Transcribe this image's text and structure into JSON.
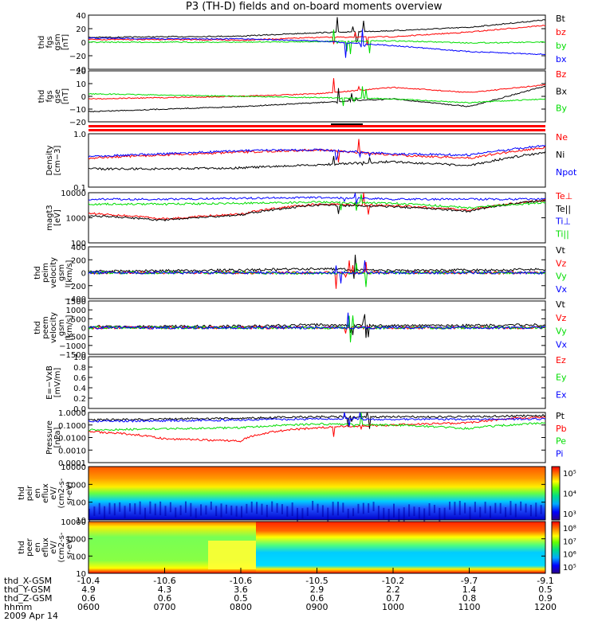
{
  "title": "P3 (TH-D) fields and on-board moments overview",
  "colors": {
    "black": "#000000",
    "red": "#ff0000",
    "green": "#00dd00",
    "blue": "#0000ff",
    "orange": "#ff8800"
  },
  "panels": [
    {
      "id": "bgsm",
      "ylabel": [
        "thd",
        "fgs",
        "gsm",
        "[nT]"
      ],
      "yticks": [
        "40",
        "20",
        "0",
        "−20",
        "−40"
      ],
      "legend": [
        {
          "text": "Bt",
          "color": "black"
        },
        {
          "text": "bz",
          "color": "red"
        },
        {
          "text": "by",
          "color": "green"
        },
        {
          "text": "bx",
          "color": "blue"
        }
      ]
    },
    {
      "id": "bgse",
      "ylabel": [
        "thd",
        "fgs",
        "gse",
        "[nT]"
      ],
      "yticks": [
        "20",
        "10",
        "0",
        "−10",
        "−20"
      ],
      "legend": [
        {
          "text": "Bz",
          "color": "red"
        },
        {
          "text": "Bx",
          "color": "black"
        },
        {
          "text": "By",
          "color": "green"
        }
      ]
    },
    {
      "id": "density",
      "ylabel": [
        "Density",
        "[cm−3]"
      ],
      "yticks": [
        "1.0",
        "0.1"
      ],
      "legend": [
        {
          "text": "Ne",
          "color": "red"
        },
        {
          "text": "Ni",
          "color": "black"
        },
        {
          "text": "Npot",
          "color": "blue"
        }
      ]
    },
    {
      "id": "temp",
      "ylabel": [
        "magt3",
        "[eV]"
      ],
      "yticks": [
        "10000",
        "1000",
        "100"
      ],
      "legend": [
        {
          "text": "Te⊥",
          "color": "red"
        },
        {
          "text": "Te||",
          "color": "black"
        },
        {
          "text": "Ti⊥",
          "color": "blue"
        },
        {
          "text": "Ti||",
          "color": "green"
        }
      ]
    },
    {
      "id": "vi",
      "ylabel": [
        "thd",
        "peim",
        "velocity",
        "gsm",
        "[km/s]"
      ],
      "yticks": [
        "400",
        "200",
        "0",
        "−200",
        "−400"
      ],
      "legend": [
        {
          "text": "Vt",
          "color": "black"
        },
        {
          "text": "Vz",
          "color": "red"
        },
        {
          "text": "Vy",
          "color": "green"
        },
        {
          "text": "Vx",
          "color": "blue"
        }
      ]
    },
    {
      "id": "ve",
      "ylabel": [
        "thd",
        "peem",
        "velocity",
        "gsm",
        "[km/s]"
      ],
      "yticks": [
        "1500",
        "1000",
        "500",
        "0",
        "−500",
        "−1000",
        "−1500"
      ],
      "legend": [
        {
          "text": "Vt",
          "color": "black"
        },
        {
          "text": "Vz",
          "color": "red"
        },
        {
          "text": "Vy",
          "color": "green"
        },
        {
          "text": "Vx",
          "color": "blue"
        }
      ]
    },
    {
      "id": "efield",
      "ylabel": [
        "E=−VxB",
        "[mV/m]"
      ],
      "yticks": [
        "1.0",
        "0.8",
        "0.6",
        "0.4",
        "0.2",
        "0.0"
      ],
      "legend": [
        {
          "text": "Ez",
          "color": "red"
        },
        {
          "text": "Ey",
          "color": "green"
        },
        {
          "text": "Ex",
          "color": "blue"
        }
      ]
    },
    {
      "id": "pressure",
      "ylabel": [
        "Pressure",
        "[nPa]"
      ],
      "yticks": [
        "1.0000",
        "0.1000",
        "0.0100",
        "0.0010",
        "0.0001"
      ],
      "legend": [
        {
          "text": "Pt",
          "color": "black"
        },
        {
          "text": "Pb",
          "color": "red"
        },
        {
          "text": "Pe",
          "color": "green"
        },
        {
          "text": "Pi",
          "color": "blue"
        }
      ]
    },
    {
      "id": "ispec",
      "ylabel": [
        "thd",
        "peir",
        "en",
        "eflux",
        "eV/",
        "(cm2-s-",
        "sr-eV)"
      ],
      "yticks": [
        "10000",
        "1000",
        "100",
        "10"
      ],
      "cbar": [
        "10⁵",
        "10⁴",
        "10³"
      ]
    },
    {
      "id": "espec",
      "ylabel": [
        "thd",
        "peer",
        "en",
        "eflux",
        "eV/",
        "(cm2-s-",
        "sr-eV)"
      ],
      "yticks": [
        "10000",
        "1000",
        "100",
        "10"
      ],
      "cbar": [
        "10⁸",
        "10⁷",
        "10⁶",
        "10⁵"
      ]
    }
  ],
  "xaxis": {
    "rows": [
      {
        "label": "thd_X-GSM",
        "values": [
          "-10.4",
          "-10.6",
          "-10.6",
          "-10.5",
          "-10.2",
          "-9.7",
          "-9.1"
        ]
      },
      {
        "label": "thd_Y-GSM",
        "values": [
          "4.9",
          "4.3",
          "3.6",
          "2.9",
          "2.2",
          "1.4",
          "0.5"
        ]
      },
      {
        "label": "thd_Z-GSM",
        "values": [
          "0.6",
          "0.6",
          "0.5",
          "0.6",
          "0.7",
          "0.8",
          "0.9"
        ]
      },
      {
        "label": "hhmm",
        "values": [
          "0600",
          "0700",
          "0800",
          "0900",
          "1000",
          "1100",
          "1200"
        ]
      }
    ],
    "date": "2009 Apr 14"
  },
  "chart_data": {
    "type": "line",
    "title": "P3 (TH-D) fields and on-board moments overview",
    "x_range": [
      "0600",
      "1200"
    ],
    "panels": [
      {
        "name": "thd fgs gsm [nT]",
        "ylim": [
          -40,
          40
        ],
        "series": [
          {
            "name": "Bt",
            "x": [
              "0600",
              "0700",
              "0800",
              "0900",
              "1000",
              "1100",
              "1200"
            ],
            "values": [
              7,
              8,
              9,
              14,
              17,
              22,
              33
            ]
          },
          {
            "name": "bz",
            "x": [
              "0600",
              "0700",
              "0800",
              "0900",
              "1000",
              "1100",
              "1200"
            ],
            "values": [
              4,
              4,
              3,
              7,
              8,
              15,
              25
            ]
          },
          {
            "name": "by",
            "x": [
              "0600",
              "0700",
              "0800",
              "0900",
              "1000",
              "1100",
              "1200"
            ],
            "values": [
              0,
              0,
              0,
              1,
              2,
              -1,
              0
            ]
          },
          {
            "name": "bx",
            "x": [
              "0600",
              "0700",
              "0800",
              "0900",
              "1000",
              "1100",
              "1200"
            ],
            "values": [
              6,
              5,
              5,
              2,
              -5,
              -14,
              -18
            ]
          }
        ]
      },
      {
        "name": "thd fgs gse [nT]",
        "ylim": [
          -20,
          20
        ],
        "series": [
          {
            "name": "Bz",
            "x": [
              "0600",
              "0700",
              "0800",
              "0900",
              "1000",
              "1100",
              "1200"
            ],
            "values": [
              -2,
              -1,
              0,
              2,
              7,
              3,
              9
            ]
          },
          {
            "name": "Bx",
            "x": [
              "0600",
              "0700",
              "0800",
              "0900",
              "1000",
              "1100",
              "1200"
            ],
            "values": [
              -12,
              -10,
              -8,
              -5,
              -2,
              -8,
              8
            ]
          },
          {
            "name": "By",
            "x": [
              "0600",
              "0700",
              "0800",
              "0900",
              "1000",
              "1100",
              "1200"
            ],
            "values": [
              2,
              1,
              0,
              -1,
              -2,
              -5,
              -2
            ]
          }
        ]
      },
      {
        "name": "Density [cm-3]",
        "ylim": [
          0.1,
          1.0
        ],
        "series": [
          {
            "name": "Ne",
            "x": [
              "0600",
              "0700",
              "0800",
              "0900",
              "1000",
              "1100",
              "1200"
            ],
            "values": [
              0.35,
              0.4,
              0.45,
              0.5,
              0.4,
              0.35,
              0.55
            ]
          },
          {
            "name": "Ni",
            "x": [
              "0600",
              "0700",
              "0800",
              "0900",
              "1000",
              "1100",
              "1200"
            ],
            "values": [
              0.22,
              0.22,
              0.23,
              0.26,
              0.3,
              0.25,
              0.45
            ]
          },
          {
            "name": "Npot",
            "x": [
              "0600",
              "0700",
              "0800",
              "0900",
              "1000",
              "1100",
              "1200"
            ],
            "values": [
              0.38,
              0.42,
              0.48,
              0.5,
              0.42,
              0.4,
              0.6
            ]
          }
        ]
      },
      {
        "name": "magt3 [eV]",
        "ylim": [
          100,
          10000
        ],
        "series": [
          {
            "name": "Te⊥",
            "x": [
              "0600",
              "0700",
              "0800",
              "0900",
              "1000",
              "1100",
              "1200"
            ],
            "values": [
              1500,
              900,
              1400,
              3500,
              3000,
              2000,
              5000
            ]
          },
          {
            "name": "Te||",
            "x": [
              "0600",
              "0700",
              "0800",
              "0900",
              "1000",
              "1100",
              "1200"
            ],
            "values": [
              1200,
              800,
              1300,
              3200,
              2800,
              1800,
              5000
            ]
          },
          {
            "name": "Ti⊥",
            "x": [
              "0600",
              "0700",
              "0800",
              "0900",
              "1000",
              "1100",
              "1200"
            ],
            "values": [
              5500,
              5500,
              6000,
              6500,
              5500,
              5500,
              5500
            ]
          },
          {
            "name": "Ti||",
            "x": [
              "0600",
              "0700",
              "0800",
              "0900",
              "1000",
              "1100",
              "1200"
            ],
            "values": [
              3500,
              3500,
              3800,
              4200,
              3800,
              2500,
              4000
            ]
          }
        ]
      },
      {
        "name": "thd peim velocity gsm [km/s]",
        "ylim": [
          -400,
          400
        ],
        "series": [
          {
            "name": "Vt",
            "x": [
              "0600",
              "0700",
              "0800",
              "0900",
              "1000",
              "1100",
              "1200"
            ],
            "values": [
              20,
              30,
              40,
              60,
              30,
              40,
              50
            ]
          },
          {
            "name": "Vz",
            "x": [
              "0600",
              "0700",
              "0800",
              "0900",
              "1000",
              "1100",
              "1200"
            ],
            "values": [
              0,
              0,
              0,
              0,
              0,
              0,
              0
            ]
          },
          {
            "name": "Vy",
            "x": [
              "0600",
              "0700",
              "0800",
              "0900",
              "1000",
              "1100",
              "1200"
            ],
            "values": [
              0,
              0,
              0,
              -10,
              0,
              0,
              0
            ]
          },
          {
            "name": "Vx",
            "x": [
              "0600",
              "0700",
              "0800",
              "0900",
              "1000",
              "1100",
              "1200"
            ],
            "values": [
              0,
              0,
              0,
              0,
              0,
              0,
              0
            ]
          }
        ]
      },
      {
        "name": "thd peem velocity gsm [km/s]",
        "ylim": [
          -1500,
          1500
        ],
        "series": [
          {
            "name": "Vt",
            "x": [
              "0600",
              "0700",
              "0800",
              "0900",
              "1000",
              "1100",
              "1200"
            ],
            "values": [
              50,
              60,
              80,
              150,
              100,
              120,
              150
            ]
          },
          {
            "name": "Vz",
            "x": [
              "0600",
              "0700",
              "0800",
              "0900",
              "1000",
              "1100",
              "1200"
            ],
            "values": [
              0,
              0,
              0,
              0,
              0,
              0,
              0
            ]
          },
          {
            "name": "Vy",
            "x": [
              "0600",
              "0700",
              "0800",
              "0900",
              "1000",
              "1100",
              "1200"
            ],
            "values": [
              0,
              0,
              0,
              0,
              0,
              0,
              0
            ]
          },
          {
            "name": "Vx",
            "x": [
              "0600",
              "0700",
              "0800",
              "0900",
              "1000",
              "1100",
              "1200"
            ],
            "values": [
              0,
              0,
              0,
              0,
              0,
              0,
              0
            ]
          }
        ]
      },
      {
        "name": "E=-VxB [mV/m]",
        "ylim": [
          0.0,
          1.0
        ],
        "series": []
      },
      {
        "name": "Pressure [nPa]",
        "ylim": [
          0.0001,
          1.0
        ],
        "series": [
          {
            "name": "Pt",
            "x": [
              "0600",
              "0700",
              "0800",
              "0900",
              "1000",
              "1100",
              "1200"
            ],
            "values": [
              0.25,
              0.3,
              0.35,
              0.45,
              0.45,
              0.45,
              0.6
            ]
          },
          {
            "name": "Pb",
            "x": [
              "0600",
              "0700",
              "0800",
              "0900",
              "1000",
              "1100",
              "1200"
            ],
            "values": [
              0.03,
              0.008,
              0.005,
              0.06,
              0.1,
              0.15,
              0.45
            ]
          },
          {
            "name": "Pe",
            "x": [
              "0600",
              "0700",
              "0800",
              "0900",
              "1000",
              "1100",
              "1200"
            ],
            "values": [
              0.04,
              0.05,
              0.06,
              0.12,
              0.1,
              0.05,
              0.15
            ]
          },
          {
            "name": "Pi",
            "x": [
              "0600",
              "0700",
              "0800",
              "0900",
              "1000",
              "1100",
              "1200"
            ],
            "values": [
              0.2,
              0.22,
              0.25,
              0.3,
              0.28,
              0.28,
              0.3
            ]
          }
        ]
      }
    ]
  }
}
